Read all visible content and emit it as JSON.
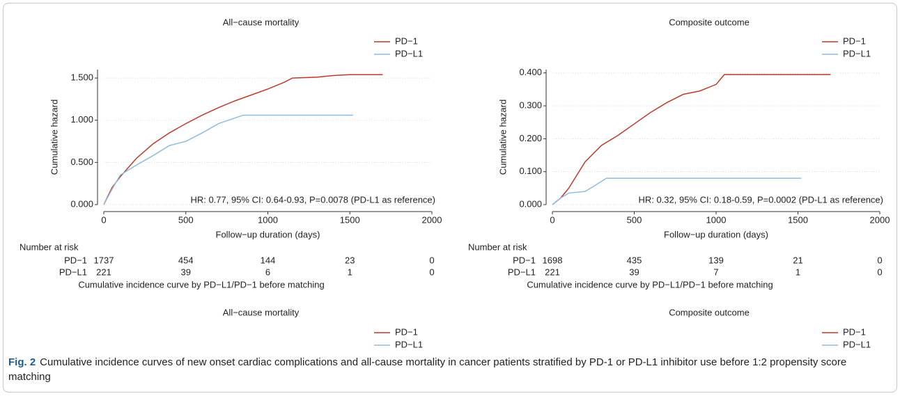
{
  "chart_data": [
    {
      "type": "line",
      "title": "All−cause mortality",
      "x_label": "Follow−up duration (days)",
      "y_label": "Cumulative hazard",
      "annotation": "HR: 0.77, 95% CI: 0.64-0.93, P=0.0078 (PD-L1 as reference)",
      "xlim": [
        0,
        2000
      ],
      "xticks": [
        0,
        500,
        1000,
        1500,
        2000
      ],
      "ylim": [
        0,
        1.6
      ],
      "yticks": [
        {
          "value": 0,
          "label": "0.000"
        },
        {
          "value": 0.5,
          "label": "0.500"
        },
        {
          "value": 1,
          "label": "1.000"
        },
        {
          "value": 1.5,
          "label": "1.500"
        }
      ],
      "grid": true,
      "series": [
        {
          "name": "PD−1",
          "color": "#c0392b",
          "x": [
            0,
            50,
            100,
            150,
            200,
            300,
            400,
            500,
            600,
            700,
            800,
            900,
            1000,
            1100,
            1150,
            1300,
            1400,
            1500,
            1700
          ],
          "values": [
            0,
            0.2,
            0.33,
            0.44,
            0.55,
            0.72,
            0.85,
            0.96,
            1.06,
            1.15,
            1.23,
            1.3,
            1.37,
            1.45,
            1.5,
            1.51,
            1.53,
            1.54,
            1.54
          ]
        },
        {
          "name": "PD−L1",
          "color": "#8dbbe0",
          "x": [
            0,
            50,
            100,
            200,
            300,
            400,
            500,
            600,
            700,
            850,
            1520
          ],
          "values": [
            0,
            0.18,
            0.35,
            0.47,
            0.58,
            0.7,
            0.75,
            0.85,
            0.96,
            1.06,
            1.06
          ]
        }
      ],
      "risk_table": {
        "title": "Number at risk",
        "rows": [
          {
            "label": "PD−1",
            "values": [
              1737,
              454,
              144,
              23,
              0
            ]
          },
          {
            "label": "PD−L1",
            "values": [
              221,
              39,
              6,
              1,
              0
            ]
          }
        ],
        "note": "Cumulative incidence curve by PD−L1/PD−1 before matching"
      }
    },
    {
      "type": "line",
      "title": "Composite outcome",
      "x_label": "Follow−up duration (days)",
      "y_label": "Cumulative hazard",
      "annotation": "HR: 0.32, 95% CI: 0.18-0.59, P=0.0002 (PD-L1 as reference)",
      "xlim": [
        0,
        2000
      ],
      "xticks": [
        0,
        500,
        1000,
        1500,
        2000
      ],
      "ylim": [
        0,
        0.41
      ],
      "yticks": [
        {
          "value": 0,
          "label": "0.000"
        },
        {
          "value": 0.1,
          "label": "0.100"
        },
        {
          "value": 0.2,
          "label": "0.200"
        },
        {
          "value": 0.3,
          "label": "0.300"
        },
        {
          "value": 0.4,
          "label": "0.400"
        }
      ],
      "grid": true,
      "series": [
        {
          "name": "PD−1",
          "color": "#c0392b",
          "x": [
            0,
            50,
            100,
            150,
            200,
            300,
            400,
            500,
            600,
            700,
            800,
            900,
            1000,
            1050,
            1700
          ],
          "values": [
            0,
            0.02,
            0.05,
            0.09,
            0.13,
            0.18,
            0.21,
            0.245,
            0.28,
            0.31,
            0.335,
            0.345,
            0.365,
            0.395,
            0.395
          ]
        },
        {
          "name": "PD−L1",
          "color": "#8dbbe0",
          "x": [
            0,
            50,
            100,
            200,
            250,
            330,
            1520
          ],
          "values": [
            0,
            0.02,
            0.035,
            0.04,
            0.055,
            0.08,
            0.08
          ]
        }
      ],
      "risk_table": {
        "title": "Number at risk",
        "rows": [
          {
            "label": "PD−1",
            "values": [
              1698,
              435,
              139,
              21,
              0
            ]
          },
          {
            "label": "PD−L1",
            "values": [
              221,
              39,
              7,
              1,
              0
            ]
          }
        ],
        "note": "Cumulative incidence curve by PD−L1/PD−1 before matching"
      }
    },
    {
      "type": "line",
      "title": "All−cause mortality",
      "series": [
        {
          "name": "PD−1",
          "color": "#c0392b"
        },
        {
          "name": "PD−L1",
          "color": "#8dbbe0"
        }
      ]
    },
    {
      "type": "line",
      "title": "Composite outcome",
      "series": [
        {
          "name": "PD−1",
          "color": "#c0392b"
        },
        {
          "name": "PD−L1",
          "color": "#8dbbe0"
        }
      ]
    }
  ],
  "caption": {
    "label": "Fig. 2",
    "text": "Cumulative incidence curves of new onset cardiac complications and all-cause mortality in cancer patients stratified by PD-1 or PD-L1 inhibitor use before 1:2 propensity score matching"
  }
}
